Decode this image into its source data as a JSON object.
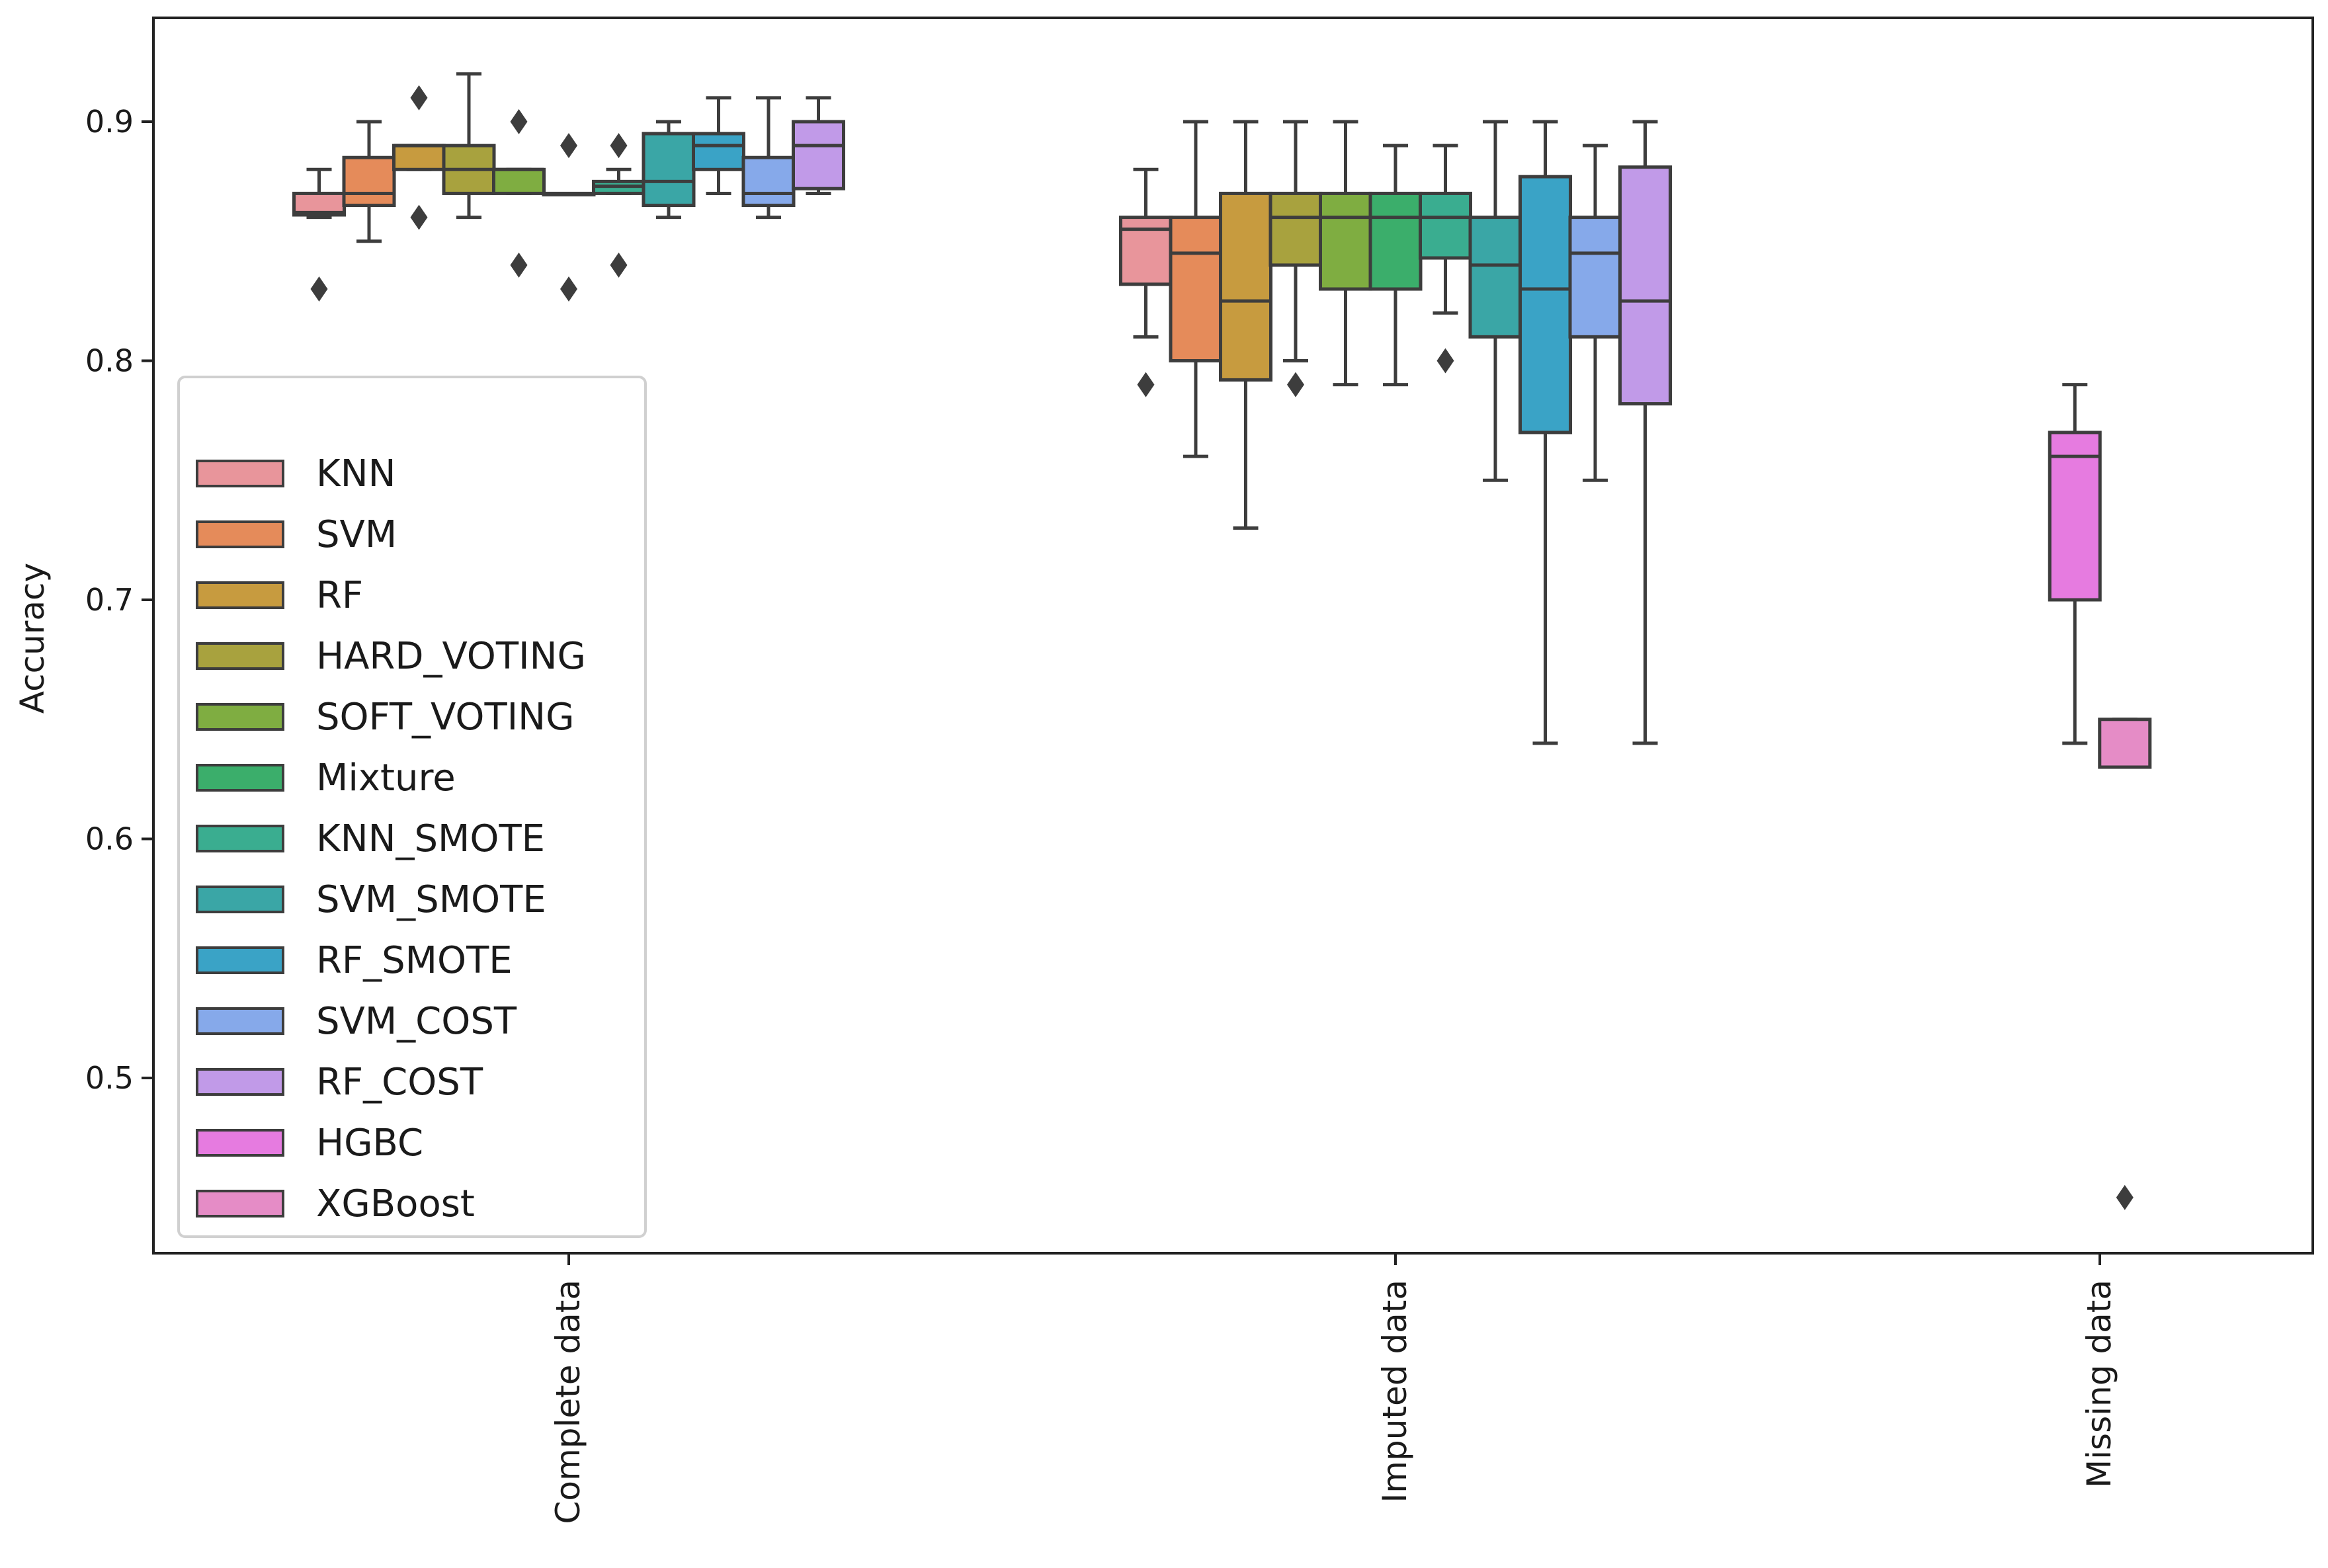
{
  "chart_data": {
    "type": "box",
    "ylabel": "Accuracy",
    "xlabel": "",
    "ylim": [
      0.425,
      0.945
    ],
    "yticks": [
      0.5,
      0.6,
      0.7,
      0.8,
      0.9
    ],
    "ytick_labels": [
      "0.5",
      "0.6",
      "0.7",
      "0.8",
      "0.9"
    ],
    "categories": [
      "Complete data",
      "Imputed data",
      "Missing data"
    ],
    "grid": false,
    "legend_position": "left",
    "series": [
      {
        "name": "KNN",
        "color": "#e8959b",
        "boxes": [
          {
            "category": "Complete data",
            "whislo": 0.86,
            "q1": 0.861,
            "med": 0.862,
            "q3": 0.87,
            "whishi": 0.88,
            "fliers": [
              0.83
            ]
          },
          {
            "category": "Imputed data",
            "whislo": 0.81,
            "q1": 0.832,
            "med": 0.855,
            "q3": 0.86,
            "whishi": 0.88,
            "fliers": [
              0.79
            ]
          }
        ]
      },
      {
        "name": "SVM",
        "color": "#e58b5a",
        "boxes": [
          {
            "category": "Complete data",
            "whislo": 0.85,
            "q1": 0.865,
            "med": 0.87,
            "q3": 0.885,
            "whishi": 0.9,
            "fliers": []
          },
          {
            "category": "Imputed data",
            "whislo": 0.76,
            "q1": 0.8,
            "med": 0.845,
            "q3": 0.86,
            "whishi": 0.9,
            "fliers": []
          }
        ]
      },
      {
        "name": "RF",
        "color": "#c79b3f",
        "boxes": [
          {
            "category": "Complete data",
            "whislo": 0.88,
            "q1": 0.88,
            "med": 0.89,
            "q3": 0.89,
            "whishi": 0.89,
            "fliers": [
              0.91,
              0.86
            ]
          },
          {
            "category": "Imputed data",
            "whislo": 0.73,
            "q1": 0.792,
            "med": 0.825,
            "q3": 0.87,
            "whishi": 0.9,
            "fliers": []
          }
        ]
      },
      {
        "name": "HARD_VOTING",
        "color": "#a8a23e",
        "boxes": [
          {
            "category": "Complete data",
            "whislo": 0.86,
            "q1": 0.87,
            "med": 0.88,
            "q3": 0.89,
            "whishi": 0.92,
            "fliers": []
          },
          {
            "category": "Imputed data",
            "whislo": 0.8,
            "q1": 0.84,
            "med": 0.86,
            "q3": 0.87,
            "whishi": 0.9,
            "fliers": [
              0.79
            ]
          }
        ]
      },
      {
        "name": "SOFT_VOTING",
        "color": "#7fad41",
        "boxes": [
          {
            "category": "Complete data",
            "whislo": 0.87,
            "q1": 0.87,
            "med": 0.88,
            "q3": 0.88,
            "whishi": 0.88,
            "fliers": [
              0.9,
              0.84
            ]
          },
          {
            "category": "Imputed data",
            "whislo": 0.79,
            "q1": 0.83,
            "med": 0.86,
            "q3": 0.87,
            "whishi": 0.9,
            "fliers": []
          }
        ]
      },
      {
        "name": "Mixture",
        "color": "#3bae6b",
        "boxes": [
          {
            "category": "Complete data",
            "whislo": 0.87,
            "q1": 0.87,
            "med": 0.87,
            "q3": 0.87,
            "whishi": 0.87,
            "fliers": [
              0.89,
              0.83
            ]
          },
          {
            "category": "Imputed data",
            "whislo": 0.79,
            "q1": 0.83,
            "med": 0.86,
            "q3": 0.87,
            "whishi": 0.89,
            "fliers": []
          }
        ]
      },
      {
        "name": "KNN_SMOTE",
        "color": "#3aad90",
        "boxes": [
          {
            "category": "Complete data",
            "whislo": 0.87,
            "q1": 0.87,
            "med": 0.873,
            "q3": 0.875,
            "whishi": 0.88,
            "fliers": [
              0.89,
              0.84
            ]
          },
          {
            "category": "Imputed data",
            "whislo": 0.82,
            "q1": 0.843,
            "med": 0.86,
            "q3": 0.87,
            "whishi": 0.89,
            "fliers": [
              0.8
            ]
          }
        ]
      },
      {
        "name": "SVM_SMOTE",
        "color": "#3aa6a6",
        "boxes": [
          {
            "category": "Complete data",
            "whislo": 0.86,
            "q1": 0.865,
            "med": 0.875,
            "q3": 0.895,
            "whishi": 0.9,
            "fliers": []
          },
          {
            "category": "Imputed data",
            "whislo": 0.75,
            "q1": 0.81,
            "med": 0.84,
            "q3": 0.86,
            "whishi": 0.9,
            "fliers": []
          }
        ]
      },
      {
        "name": "RF_SMOTE",
        "color": "#3aa3c6",
        "boxes": [
          {
            "category": "Complete data",
            "whislo": 0.87,
            "q1": 0.88,
            "med": 0.89,
            "q3": 0.895,
            "whishi": 0.91,
            "fliers": []
          },
          {
            "category": "Imputed data",
            "whislo": 0.64,
            "q1": 0.77,
            "med": 0.83,
            "q3": 0.877,
            "whishi": 0.9,
            "fliers": []
          }
        ]
      },
      {
        "name": "SVM_COST",
        "color": "#86a9ea",
        "boxes": [
          {
            "category": "Complete data",
            "whislo": 0.86,
            "q1": 0.865,
            "med": 0.87,
            "q3": 0.885,
            "whishi": 0.91,
            "fliers": []
          },
          {
            "category": "Imputed data",
            "whislo": 0.75,
            "q1": 0.81,
            "med": 0.845,
            "q3": 0.86,
            "whishi": 0.89,
            "fliers": []
          }
        ]
      },
      {
        "name": "RF_COST",
        "color": "#c19ae8",
        "boxes": [
          {
            "category": "Complete data",
            "whislo": 0.87,
            "q1": 0.872,
            "med": 0.89,
            "q3": 0.9,
            "whishi": 0.91,
            "fliers": []
          },
          {
            "category": "Imputed data",
            "whislo": 0.64,
            "q1": 0.782,
            "med": 0.825,
            "q3": 0.881,
            "whishi": 0.9,
            "fliers": []
          }
        ]
      },
      {
        "name": "HGBC",
        "color": "#e67be0",
        "boxes": [
          {
            "category": "Missing data",
            "whislo": 0.64,
            "q1": 0.7,
            "med": 0.76,
            "q3": 0.77,
            "whishi": 0.79,
            "fliers": []
          }
        ]
      },
      {
        "name": "XGBoost",
        "color": "#e58cc6",
        "boxes": [
          {
            "category": "Missing data",
            "whislo": 0.63,
            "q1": 0.63,
            "med": 0.63,
            "q3": 0.65,
            "whishi": 0.65,
            "fliers": [
              0.45
            ]
          }
        ]
      }
    ]
  }
}
